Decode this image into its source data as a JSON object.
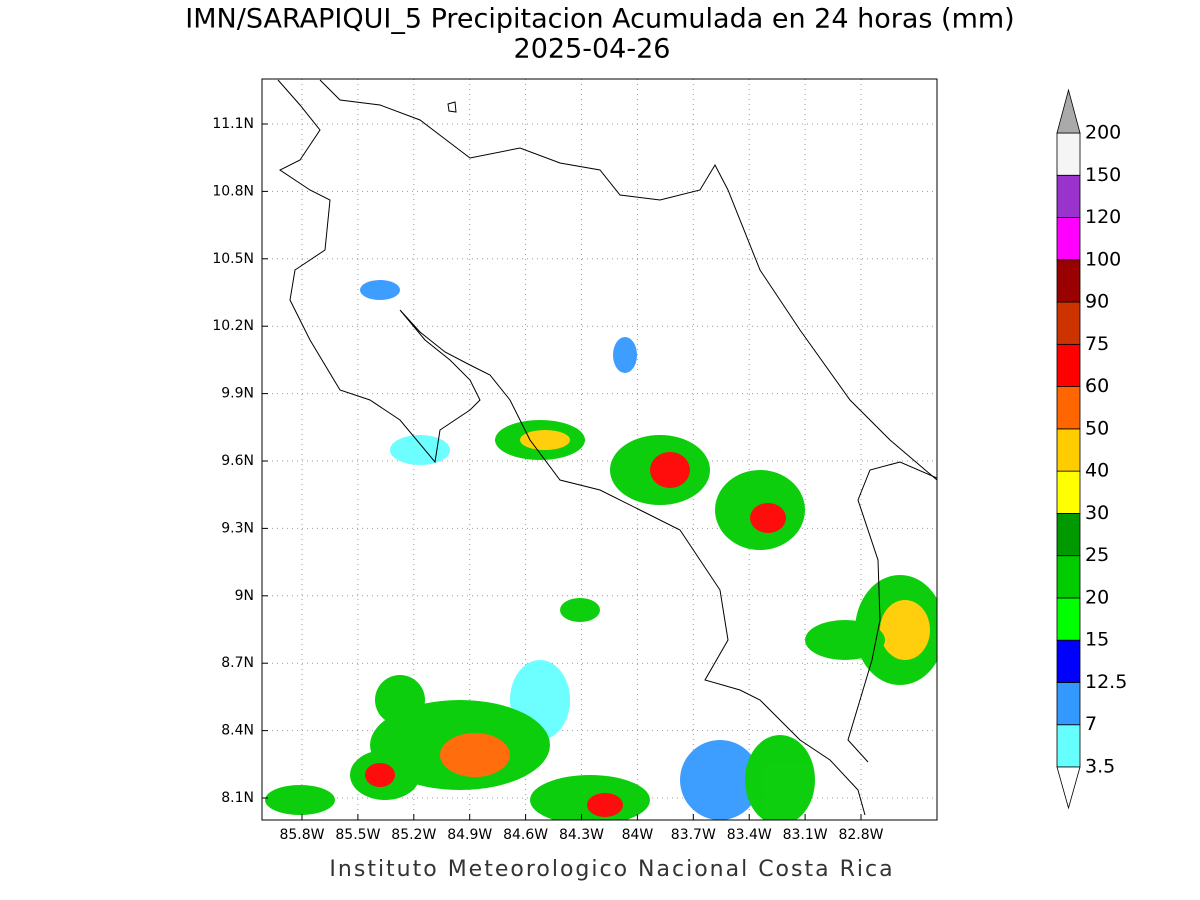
{
  "header": {
    "title": "IMN/SARAPIQUI_5 Precipitacion Acumulada en 24 horas (mm)",
    "subtitle": "2025-04-26"
  },
  "map": {
    "lat_labels": [
      "11.1N",
      "10.8N",
      "10.5N",
      "10.2N",
      "9.9N",
      "9.6N",
      "9.3N",
      "9N",
      "8.7N",
      "8.4N",
      "8.1N"
    ],
    "lon_labels": [
      "85.8W",
      "85.5W",
      "85.2W",
      "84.9W",
      "84.6W",
      "84.3W",
      "84W",
      "83.7W",
      "83.4W",
      "83.1W",
      "82.8W"
    ]
  },
  "colorbar": {
    "levels": [
      3.5,
      7,
      12.5,
      15,
      20,
      25,
      30,
      40,
      50,
      60,
      75,
      90,
      100,
      120,
      150,
      200
    ],
    "colors": [
      "#66ffff",
      "#3399ff",
      "#0000ff",
      "#00ff00",
      "#00cc00",
      "#009900",
      "#ffff00",
      "#ffcc00",
      "#ff6600",
      "#ff0000",
      "#cc3300",
      "#990000",
      "#ff00ff",
      "#9933cc",
      "#f5f5f5"
    ],
    "under_color": "#ffffff",
    "over_color": "#aaaaaa"
  },
  "footer": "Instituto Meteorologico Nacional Costa Rica"
}
